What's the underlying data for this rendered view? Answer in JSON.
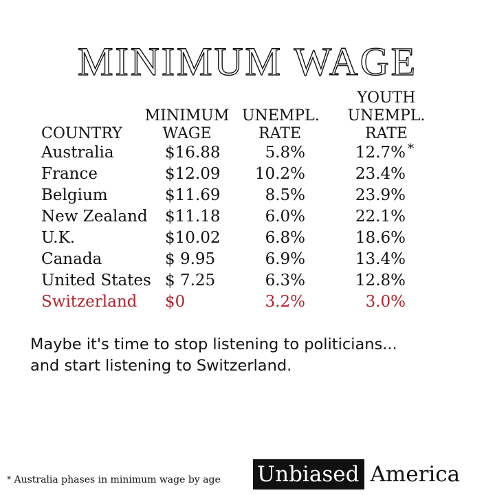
{
  "title": "MINIMUM WAGE",
  "table": {
    "headers": {
      "country": "COUNTRY",
      "wage": [
        "MINIMUM",
        "WAGE"
      ],
      "unemployment": [
        "UNEMPL.",
        "RATE"
      ],
      "youth_unemployment": [
        "YOUTH",
        "UNEMPL.",
        "RATE"
      ]
    },
    "rows": [
      {
        "country": "Australia",
        "wage": "$16.88",
        "unemployment": "5.8%",
        "youth": "12.7%",
        "note": "*"
      },
      {
        "country": "France",
        "wage": "$12.09",
        "unemployment": "10.2%",
        "youth": "23.4%",
        "note": ""
      },
      {
        "country": "Belgium",
        "wage": "$11.69",
        "unemployment": "8.5%",
        "youth": "23.9%",
        "note": ""
      },
      {
        "country": "New Zealand",
        "wage": "$11.18",
        "unemployment": "6.0%",
        "youth": "22.1%",
        "note": ""
      },
      {
        "country": "U.K.",
        "wage": "$10.02",
        "unemployment": "6.8%",
        "youth": "18.6%",
        "note": ""
      },
      {
        "country": "Canada",
        "wage": "$ 9.95",
        "unemployment": "6.9%",
        "youth": "13.4%",
        "note": ""
      },
      {
        "country": "United States",
        "wage": "$ 7.25",
        "unemployment": "6.3%",
        "youth": "12.8%",
        "note": ""
      },
      {
        "country": "Switzerland",
        "wage": "$0",
        "unemployment": "3.2%",
        "youth": "3.0%",
        "note": ""
      }
    ],
    "highlight_color": "#b3202a"
  },
  "message": [
    "Maybe it's time to stop listening to politicians...",
    "and start listening to Switzerland."
  ],
  "footnote": {
    "marker": "*",
    "text": "Australia phases in minimum wage by age"
  },
  "brand": {
    "boxed": "Unbiased",
    "plain": "America"
  }
}
